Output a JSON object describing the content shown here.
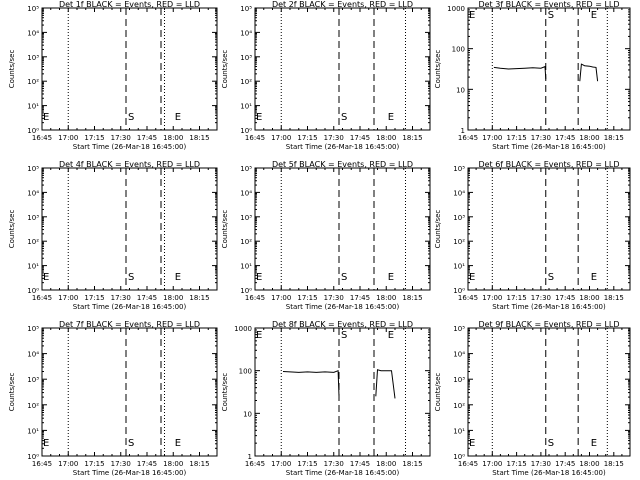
{
  "colors": {
    "background": "#ffffff",
    "foreground": "#000000",
    "events": "#000000",
    "lld": "#ff0000"
  },
  "shared": {
    "ylabel": "Counts/sec",
    "xlabel": "Start Time (26-Mar-18 16:45:00)",
    "x_ticks": [
      "16:45",
      "17:00",
      "17:15",
      "17:30",
      "17:45",
      "18:00",
      "18:15"
    ],
    "x_range_minutes": [
      0,
      100
    ],
    "y_scale": "log"
  },
  "chart_data": [
    {
      "type": "line",
      "title": "Det 1f BLACK = Events, RED = LLD",
      "y_ticks": [
        "10⁰",
        "10¹",
        "10²",
        "10³",
        "10⁴",
        "10⁵"
      ],
      "ylim_exp": [
        0,
        5
      ],
      "dotted_x": [
        15,
        70
      ],
      "dashed_x": [
        48,
        68
      ],
      "s_label": {
        "text": "S",
        "x": 48
      },
      "e_label": {
        "text": "E",
        "x": 77
      },
      "e0_label": {
        "text": "E",
        "x": 0
      },
      "series": []
    },
    {
      "type": "line",
      "title": "Det 2f BLACK = Events, RED = LLD",
      "y_ticks": [
        "10⁰",
        "10¹",
        "10²",
        "10³",
        "10⁴",
        "10⁵"
      ],
      "ylim_exp": [
        0,
        5
      ],
      "dotted_x": [
        15,
        86
      ],
      "dashed_x": [
        48,
        68
      ],
      "s_label": {
        "text": "S",
        "x": 48
      },
      "e_label": {
        "text": "E",
        "x": 77
      },
      "e0_label": {
        "text": "E",
        "x": 0
      },
      "series": []
    },
    {
      "type": "line",
      "title": "Det 3f BLACK = Events, RED = LLD",
      "y_ticks": [
        "1",
        "10",
        "100",
        "1000"
      ],
      "ylim_exp": [
        0,
        3
      ],
      "dotted_x": [
        15,
        86
      ],
      "dashed_x": [
        48,
        68
      ],
      "s_label": {
        "text": "S",
        "x": 48
      },
      "e_label": {
        "text": "E",
        "x": 77
      },
      "e0_label": {
        "text": "E",
        "x": 0
      },
      "series": [
        {
          "segments": [
            [
              [
                16,
                1.54
              ],
              [
                20,
                1.52
              ],
              [
                25,
                1.5
              ],
              [
                30,
                1.51
              ],
              [
                35,
                1.52
              ],
              [
                40,
                1.53
              ],
              [
                45,
                1.52
              ],
              [
                47.5,
                1.56
              ],
              [
                48,
                1.25
              ]
            ],
            [
              [
                69,
                1.2
              ],
              [
                70,
                1.62
              ],
              [
                72,
                1.58
              ],
              [
                75,
                1.57
              ],
              [
                77,
                1.55
              ],
              [
                79,
                1.54
              ],
              [
                80,
                1.2
              ]
            ]
          ]
        }
      ]
    },
    {
      "type": "line",
      "title": "Det 4f BLACK = Events, RED = LLD",
      "y_ticks": [
        "10⁰",
        "10¹",
        "10²",
        "10³",
        "10⁴",
        "10⁵"
      ],
      "ylim_exp": [
        0,
        5
      ],
      "dotted_x": [
        15,
        70
      ],
      "dashed_x": [
        48,
        68
      ],
      "s_label": {
        "text": "S",
        "x": 48
      },
      "e_label": {
        "text": "E",
        "x": 77
      },
      "e0_label": {
        "text": "E",
        "x": 0
      },
      "series": []
    },
    {
      "type": "line",
      "title": "Det 5f BLACK = Events, RED = LLD",
      "y_ticks": [
        "10⁰",
        "10¹",
        "10²",
        "10³",
        "10⁴",
        "10⁵"
      ],
      "ylim_exp": [
        0,
        5
      ],
      "dotted_x": [
        15,
        86
      ],
      "dashed_x": [
        48,
        68
      ],
      "s_label": {
        "text": "S",
        "x": 48
      },
      "e_label": {
        "text": "E",
        "x": 77
      },
      "e0_label": {
        "text": "E",
        "x": 0
      },
      "series": []
    },
    {
      "type": "line",
      "title": "Det 6f BLACK = Events, RED = LLD",
      "y_ticks": [
        "10⁰",
        "10¹",
        "10²",
        "10³",
        "10⁴",
        "10⁵"
      ],
      "ylim_exp": [
        0,
        5
      ],
      "dotted_x": [
        15,
        86
      ],
      "dashed_x": [
        48,
        68
      ],
      "s_label": {
        "text": "S",
        "x": 48
      },
      "e_label": {
        "text": "E",
        "x": 77
      },
      "e0_label": {
        "text": "E",
        "x": 0
      },
      "series": []
    },
    {
      "type": "line",
      "title": "Det 7f BLACK = Events, RED = LLD",
      "y_ticks": [
        "10⁰",
        "10¹",
        "10²",
        "10³",
        "10⁴",
        "10⁵"
      ],
      "ylim_exp": [
        0,
        5
      ],
      "dotted_x": [
        15,
        70
      ],
      "dashed_x": [
        48,
        68
      ],
      "s_label": {
        "text": "S",
        "x": 48
      },
      "e_label": {
        "text": "E",
        "x": 77
      },
      "e0_label": {
        "text": "E",
        "x": 0
      },
      "series": []
    },
    {
      "type": "line",
      "title": "Det 8f BLACK = Events, RED = LLD",
      "y_ticks": [
        "1",
        "10",
        "100",
        "1000"
      ],
      "ylim_exp": [
        0,
        3
      ],
      "dotted_x": [
        15,
        86
      ],
      "dashed_x": [
        48,
        68
      ],
      "s_label": {
        "text": "S",
        "x": 48
      },
      "e_label": {
        "text": "E",
        "x": 77
      },
      "e0_label": {
        "text": "E",
        "x": 0
      },
      "series": [
        {
          "segments": [
            [
              [
                16,
                1.98
              ],
              [
                20,
                1.97
              ],
              [
                25,
                1.96
              ],
              [
                30,
                1.97
              ],
              [
                35,
                1.96
              ],
              [
                40,
                1.97
              ],
              [
                45,
                1.96
              ],
              [
                47.5,
                2.0
              ],
              [
                48,
                1.4
              ]
            ],
            [
              [
                69,
                1.4
              ],
              [
                70,
                2.02
              ],
              [
                72,
                2.0
              ],
              [
                75,
                2.0
              ],
              [
                78,
                2.0
              ],
              [
                80,
                1.35
              ]
            ]
          ]
        }
      ]
    },
    {
      "type": "line",
      "title": "Det 9f BLACK = Events, RED = LLD",
      "y_ticks": [
        "10⁰",
        "10¹",
        "10²",
        "10³",
        "10⁴",
        "10⁵"
      ],
      "ylim_exp": [
        0,
        5
      ],
      "dotted_x": [
        15,
        86
      ],
      "dashed_x": [
        48,
        68
      ],
      "s_label": {
        "text": "S",
        "x": 48
      },
      "e_label": {
        "text": "E",
        "x": 77
      },
      "e0_label": {
        "text": "E",
        "x": 0
      },
      "series": []
    }
  ]
}
